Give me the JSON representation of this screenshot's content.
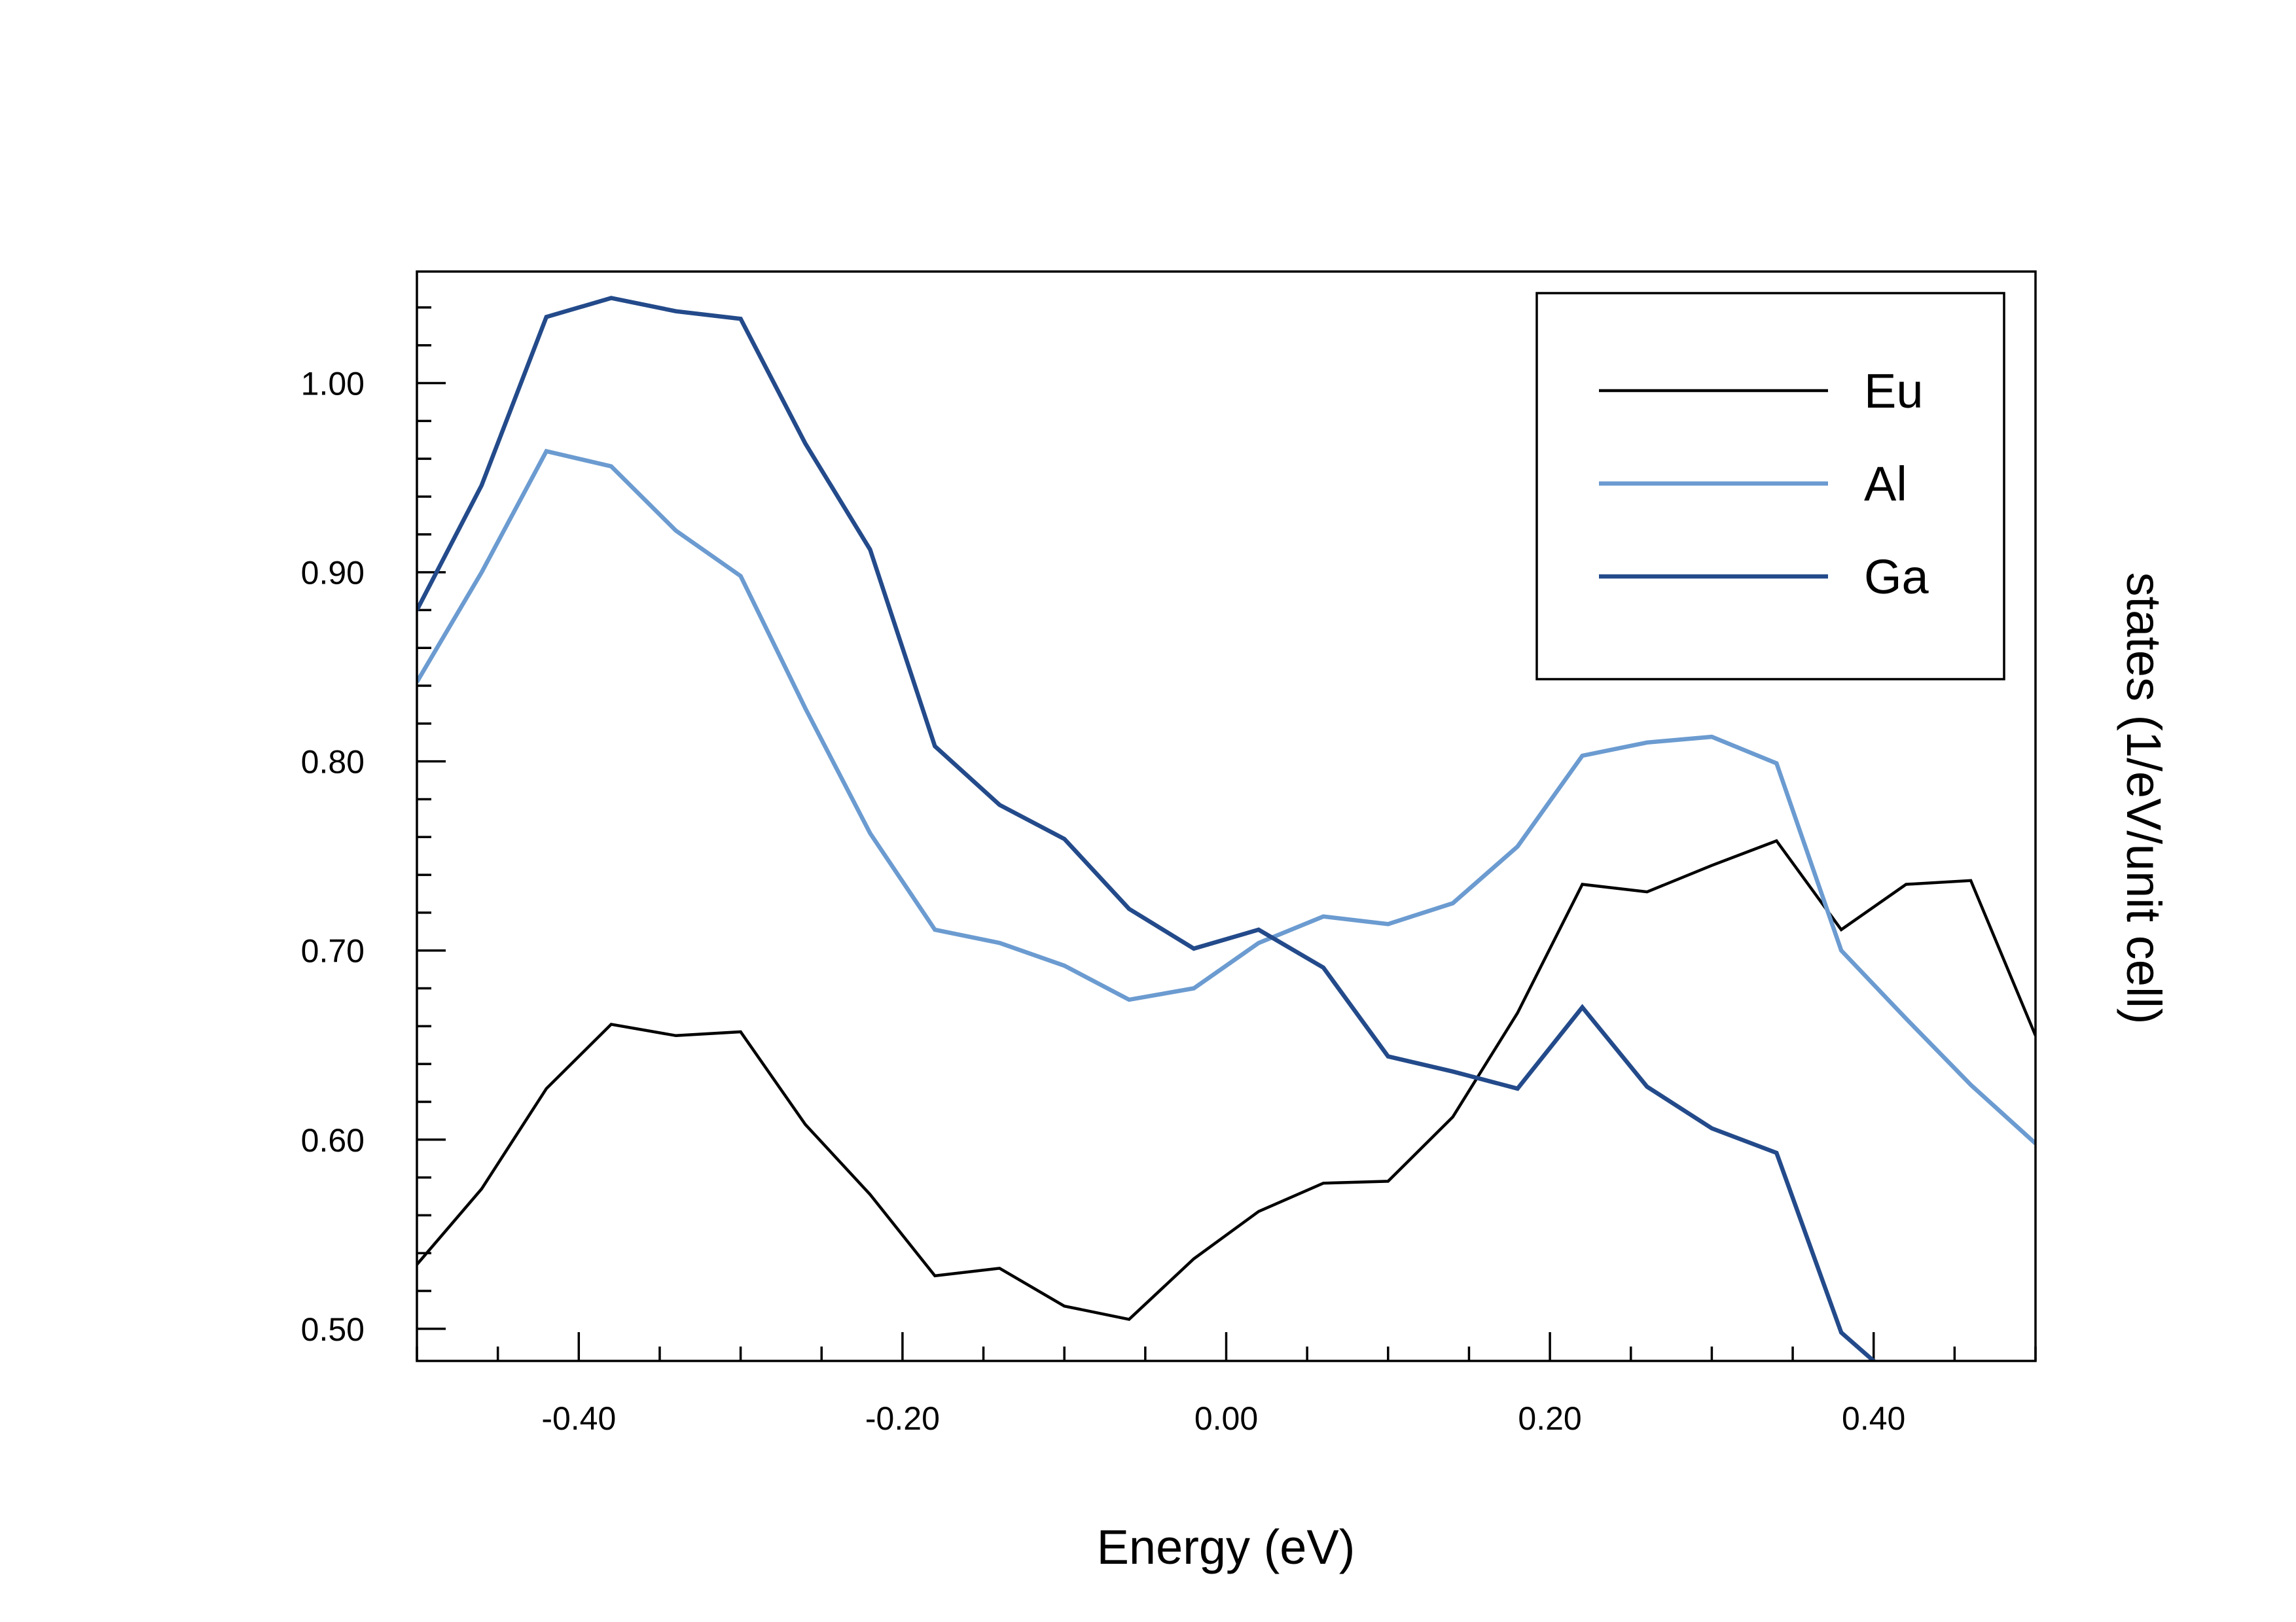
{
  "chart_data": {
    "type": "line",
    "xlabel": "Energy (eV)",
    "ylabel": "states (1/eV/unit cell)",
    "xlim": [
      -0.5,
      0.5
    ],
    "ylim": [
      0.483,
      1.059
    ],
    "xticks": [
      -0.4,
      -0.2,
      0.0,
      0.2,
      0.4
    ],
    "xtick_labels": [
      "-0.40",
      "-0.20",
      "0.00",
      "0.20",
      "0.40"
    ],
    "yticks": [
      0.5,
      0.6,
      0.7,
      0.8,
      0.9,
      1.0
    ],
    "ytick_labels": [
      "0.50",
      "0.60",
      "0.70",
      "0.80",
      "0.90",
      "1.00"
    ],
    "x_minor_step": 0.05,
    "y_minor_step": 0.02,
    "grid": false,
    "legend_position": "top-right",
    "x": [
      -0.5,
      -0.46,
      -0.42,
      -0.38,
      -0.34,
      -0.3,
      -0.26,
      -0.22,
      -0.18,
      -0.14,
      -0.1,
      -0.06,
      -0.02,
      0.02,
      0.06,
      0.1,
      0.14,
      0.18,
      0.22,
      0.26,
      0.3,
      0.34,
      0.38,
      0.42,
      0.46,
      0.5
    ],
    "series": [
      {
        "name": "Eu",
        "color": "#000000",
        "values": [
          0.534,
          0.574,
          0.627,
          0.661,
          0.655,
          0.657,
          0.608,
          0.571,
          0.528,
          0.532,
          0.512,
          0.505,
          0.537,
          0.562,
          0.577,
          0.578,
          0.612,
          0.667,
          0.735,
          0.731,
          0.745,
          0.758,
          0.711,
          0.735,
          0.737,
          0.655
        ]
      },
      {
        "name": "Al",
        "color": "#6b9bd0",
        "values": [
          0.842,
          0.9,
          0.964,
          0.956,
          0.922,
          0.898,
          0.828,
          0.762,
          0.711,
          0.704,
          0.692,
          0.674,
          0.68,
          0.704,
          0.718,
          0.714,
          0.725,
          0.755,
          0.803,
          0.81,
          0.813,
          0.799,
          0.7,
          0.664,
          0.629,
          0.598
        ]
      },
      {
        "name": "Ga",
        "color": "#234a8a",
        "values": [
          0.88,
          0.946,
          1.035,
          1.045,
          1.038,
          1.034,
          0.968,
          0.912,
          0.808,
          0.777,
          0.759,
          0.722,
          0.701,
          0.711,
          0.691,
          0.644,
          0.636,
          0.627,
          0.67,
          0.628,
          0.606,
          0.593,
          0.498,
          0.468,
          null,
          null
        ]
      }
    ]
  }
}
